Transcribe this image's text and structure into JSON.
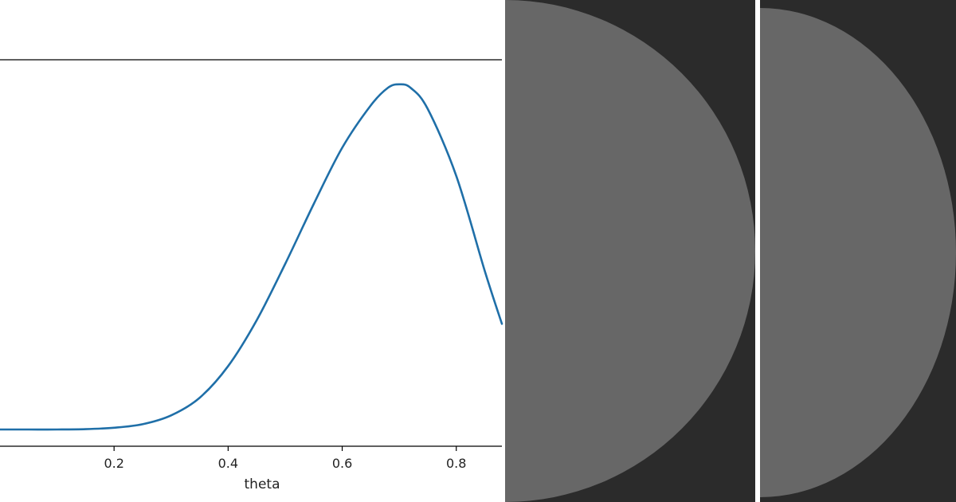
{
  "colors": {
    "line": "#1f6fa8",
    "panel_dark": "#2b2b2b",
    "panel_disc": "#676767",
    "separator": "#ffffff",
    "axis": "#000000"
  },
  "chart_data": {
    "type": "line",
    "xlabel": "theta",
    "xlim": [
      0.0,
      0.88
    ],
    "ylim": [
      0.0,
      1.0
    ],
    "x_ticks": [
      "0.2",
      "0.4",
      "0.6",
      "0.8"
    ],
    "x_tick_values": [
      0.2,
      0.4,
      0.6,
      0.8
    ],
    "grid": false,
    "series": [
      {
        "x": [
          0.0,
          0.05,
          0.1,
          0.15,
          0.2,
          0.25,
          0.3,
          0.35,
          0.4,
          0.45,
          0.5,
          0.55,
          0.6,
          0.65,
          0.68,
          0.7,
          0.72,
          0.75,
          0.8,
          0.85,
          0.88
        ],
        "values": [
          0.0,
          0.0,
          0.0,
          0.001,
          0.005,
          0.015,
          0.04,
          0.09,
          0.18,
          0.31,
          0.47,
          0.64,
          0.8,
          0.92,
          0.97,
          0.98,
          0.97,
          0.91,
          0.72,
          0.45,
          0.3
        ]
      }
    ]
  }
}
